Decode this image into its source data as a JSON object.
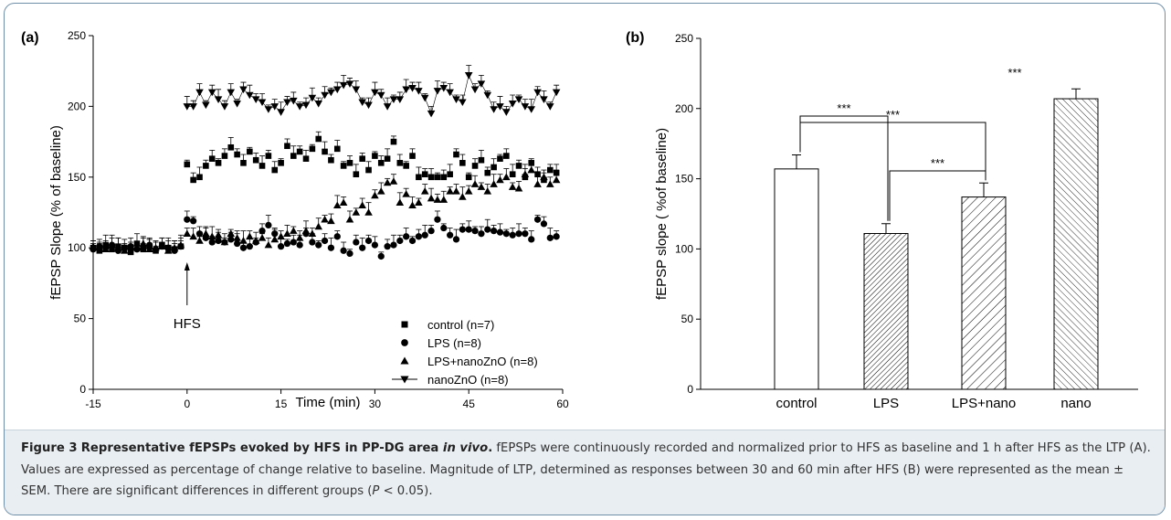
{
  "caption": {
    "figure_label": "Figure 3",
    "title": "Representative fEPSPs evoked by HFS in PP-DG area ",
    "title_italic": "in vivo",
    "title_end": ".",
    "body_1": " fEPSPs were continuously recorded and normalized prior to HFS as baseline and 1 h after HFS as the LTP (A). Values are expressed as percentage of change relative to baseline. Magnitude of LTP, determined as responses between 30 and 60 min after HFS (B) were represented as the mean ± SEM. There are significant differences in different groups (",
    "p_italic": "P",
    "body_2": " < 0.05)."
  },
  "colors": {
    "border": "#6f8fa8",
    "caption_bg": "#e9eef2",
    "ink": "#000000"
  },
  "chart_data": [
    {
      "panel_label": "(a)",
      "type": "scatter",
      "xlabel": "Time (min)",
      "ylabel": "fEPSP Slope (% of baseline)",
      "xlim": [
        -15,
        60
      ],
      "ylim": [
        0,
        250
      ],
      "xticks": [
        -15,
        0,
        15,
        30,
        45,
        60
      ],
      "yticks": [
        0,
        50,
        100,
        150,
        200,
        250
      ],
      "annotation": "HFS",
      "annotation_x": 0,
      "legend_position": "bottom-right",
      "series": [
        {
          "name": "control (n=7)",
          "marker": "square",
          "x": [
            -15,
            -14,
            -13,
            -12,
            -11,
            -10,
            -9,
            -8,
            -7,
            -6,
            -5,
            -4,
            -3,
            -2,
            -1,
            0,
            1,
            2,
            3,
            4,
            5,
            6,
            7,
            8,
            9,
            10,
            11,
            12,
            13,
            14,
            15,
            16,
            17,
            18,
            19,
            20,
            21,
            22,
            23,
            24,
            25,
            26,
            27,
            28,
            29,
            30,
            31,
            32,
            33,
            34,
            35,
            36,
            37,
            38,
            39,
            40,
            41,
            42,
            43,
            44,
            45,
            46,
            47,
            48,
            49,
            50,
            51,
            52,
            53,
            54,
            55,
            56,
            57,
            58,
            59
          ],
          "y": [
            100,
            98,
            102,
            99,
            101,
            100,
            97,
            103,
            99,
            101,
            98,
            102,
            100,
            99,
            101,
            159,
            148,
            150,
            158,
            163,
            160,
            165,
            171,
            166,
            160,
            168,
            162,
            158,
            165,
            155,
            160,
            172,
            165,
            168,
            163,
            170,
            177,
            168,
            162,
            170,
            158,
            160,
            152,
            163,
            155,
            165,
            160,
            163,
            175,
            160,
            158,
            165,
            150,
            152,
            150,
            150,
            150,
            152,
            166,
            160,
            150,
            158,
            162,
            153,
            157,
            163,
            165,
            152,
            158,
            150,
            160,
            152,
            148,
            155,
            153
          ]
        },
        {
          "name": "LPS (n=8)",
          "marker": "circle",
          "x": [
            -15,
            -14,
            -13,
            -12,
            -11,
            -10,
            -9,
            -8,
            -7,
            -6,
            -5,
            -4,
            -3,
            -2,
            -1,
            0,
            1,
            2,
            3,
            4,
            5,
            6,
            7,
            8,
            9,
            10,
            11,
            12,
            13,
            14,
            15,
            16,
            17,
            18,
            19,
            20,
            21,
            22,
            23,
            24,
            25,
            26,
            27,
            28,
            29,
            30,
            31,
            32,
            33,
            34,
            35,
            36,
            37,
            38,
            39,
            40,
            41,
            42,
            43,
            44,
            45,
            46,
            47,
            48,
            49,
            50,
            51,
            52,
            53,
            54,
            55,
            56,
            57,
            58,
            59
          ],
          "y": [
            99,
            101,
            100,
            102,
            98,
            100,
            101,
            99,
            100,
            102,
            99,
            101,
            100,
            98,
            101,
            120,
            119,
            110,
            107,
            104,
            105,
            104,
            106,
            103,
            100,
            101,
            104,
            112,
            116,
            110,
            101,
            103,
            104,
            102,
            110,
            104,
            102,
            105,
            100,
            108,
            98,
            96,
            104,
            100,
            105,
            102,
            94,
            101,
            102,
            105,
            108,
            105,
            108,
            109,
            112,
            120,
            114,
            109,
            106,
            113,
            113,
            112,
            110,
            113,
            112,
            111,
            110,
            109,
            110,
            110,
            106,
            120,
            117,
            107,
            108
          ]
        },
        {
          "name": "LPS+nanoZnO (n=8)",
          "marker": "triangle-up",
          "x": [
            -15,
            -14,
            -13,
            -12,
            -11,
            -10,
            -9,
            -8,
            -7,
            -6,
            -5,
            -4,
            -3,
            -2,
            -1,
            0,
            1,
            2,
            3,
            4,
            5,
            6,
            7,
            8,
            9,
            10,
            11,
            12,
            13,
            14,
            15,
            16,
            17,
            18,
            19,
            20,
            21,
            22,
            23,
            24,
            25,
            26,
            27,
            28,
            29,
            30,
            31,
            32,
            33,
            34,
            35,
            36,
            37,
            38,
            39,
            40,
            41,
            42,
            43,
            44,
            45,
            46,
            47,
            48,
            49,
            50,
            51,
            52,
            53,
            54,
            55,
            56,
            57,
            58,
            59
          ],
          "y": [
            101,
            100,
            99,
            102,
            100,
            98,
            101,
            100,
            103,
            99,
            100,
            101,
            98,
            100,
            102,
            110,
            108,
            105,
            110,
            108,
            109,
            104,
            110,
            107,
            105,
            108,
            105,
            107,
            102,
            106,
            108,
            110,
            112,
            107,
            112,
            110,
            115,
            120,
            119,
            130,
            132,
            120,
            125,
            130,
            125,
            137,
            140,
            146,
            147,
            132,
            138,
            130,
            132,
            140,
            135,
            134,
            134,
            140,
            140,
            136,
            140,
            145,
            143,
            140,
            145,
            148,
            150,
            143,
            142,
            152,
            155,
            145,
            150,
            145,
            148
          ]
        },
        {
          "name": "nanoZnO (n=8)",
          "marker": "triangle-down",
          "x": [
            0,
            1,
            2,
            3,
            4,
            5,
            6,
            7,
            8,
            9,
            10,
            11,
            12,
            13,
            14,
            15,
            16,
            17,
            18,
            19,
            20,
            21,
            22,
            23,
            24,
            25,
            26,
            27,
            28,
            29,
            30,
            31,
            32,
            33,
            34,
            35,
            36,
            37,
            38,
            39,
            40,
            41,
            42,
            43,
            44,
            45,
            46,
            47,
            48,
            49,
            50,
            51,
            52,
            53,
            54,
            55,
            56,
            57,
            58,
            59
          ],
          "y": [
            200,
            200,
            210,
            201,
            210,
            205,
            200,
            210,
            202,
            212,
            208,
            205,
            203,
            198,
            200,
            196,
            203,
            204,
            200,
            201,
            206,
            202,
            208,
            210,
            212,
            215,
            216,
            212,
            203,
            201,
            210,
            208,
            200,
            205,
            205,
            212,
            213,
            211,
            206,
            195,
            211,
            213,
            210,
            205,
            203,
            222,
            212,
            216,
            208,
            198,
            200,
            196,
            202,
            205,
            200,
            198,
            210,
            205,
            200,
            210
          ]
        }
      ]
    },
    {
      "panel_label": "(b)",
      "type": "bar",
      "xlabel": "",
      "ylabel": "fEPSP slope ( %of baseline)",
      "ylim": [
        0,
        250
      ],
      "yticks": [
        0,
        50,
        100,
        150,
        200,
        250
      ],
      "categories": [
        "control",
        "LPS",
        "LPS+nano",
        "nano"
      ],
      "values": [
        157,
        111,
        137,
        207
      ],
      "errors": [
        10,
        7,
        10,
        7
      ],
      "hatches": [
        "none",
        "dense",
        "diagonal",
        "back-diagonal"
      ],
      "significance": [
        {
          "from": 0,
          "to": 1,
          "label": "***"
        },
        {
          "from": 0,
          "to": 2,
          "label": "***"
        },
        {
          "from": 1,
          "to": 2,
          "label": "***"
        },
        {
          "above": 3,
          "label": "***"
        }
      ]
    }
  ]
}
